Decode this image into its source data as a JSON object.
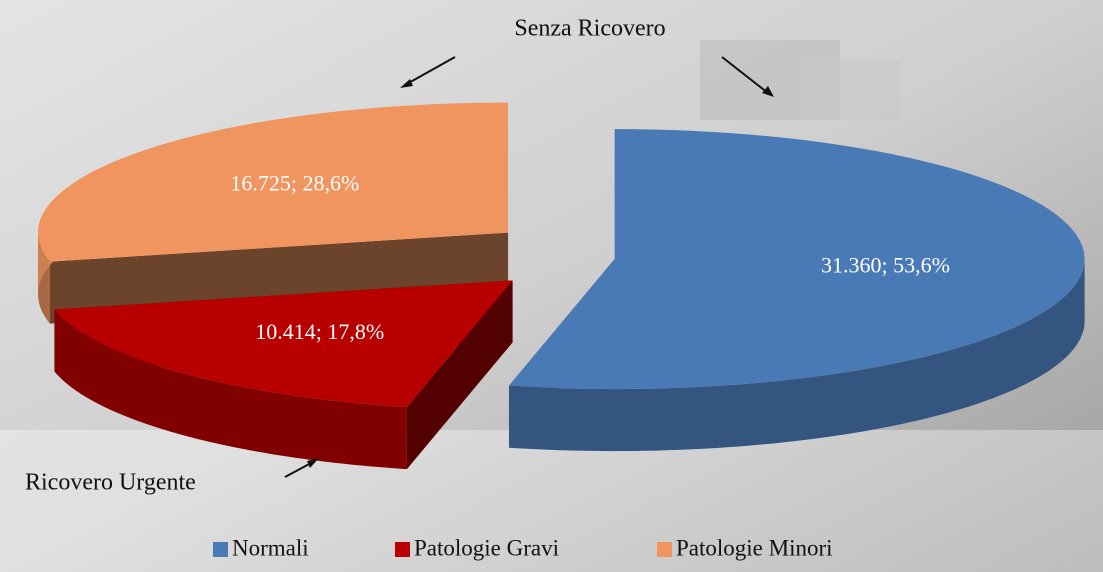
{
  "chart_data": {
    "type": "pie",
    "categories": [
      "Normali",
      "Patologie Gravi",
      "Patologie Minori"
    ],
    "values": [
      31360,
      10414,
      16725
    ],
    "value_labels": [
      "31.360; 53,6%",
      "10.414; 17,8%",
      "16.725; 28,6%"
    ],
    "colors": [
      "#4a7ab5",
      "#b80000",
      "#f0955f"
    ],
    "annotations": [
      "Senza Ricovero",
      "Ricovero Urgente"
    ],
    "legend": "bottom"
  }
}
